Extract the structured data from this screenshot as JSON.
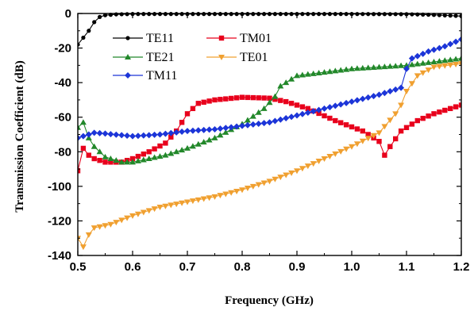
{
  "chart_data": {
    "type": "line",
    "title": "",
    "xlabel": "Frequency (GHz)",
    "ylabel": "Transmission Coefficient (dB)",
    "xlim": [
      0.5,
      1.2
    ],
    "ylim": [
      -140,
      0
    ],
    "xticks": [
      0.5,
      0.6,
      0.7,
      0.8,
      0.9,
      1.0,
      1.1,
      1.2
    ],
    "xtick_labels": [
      "0.5",
      "0.6",
      "0.7",
      "0.8",
      "0.9",
      "1.0",
      "1.1",
      "1.2"
    ],
    "yticks": [
      0,
      -20,
      -40,
      -60,
      -80,
      -100,
      -120,
      -140
    ],
    "ytick_labels": [
      "0",
      "-20",
      "-40",
      "-60",
      "-80",
      "-100",
      "-120",
      "-140"
    ],
    "grid": false,
    "legend_position": "top-left",
    "series": [
      {
        "name": "TE11",
        "color": "#000000",
        "marker": "circle",
        "points": [
          [
            0.5,
            -18
          ],
          [
            0.51,
            -14
          ],
          [
            0.52,
            -10
          ],
          [
            0.53,
            -5
          ],
          [
            0.54,
            -2
          ],
          [
            0.55,
            -1
          ],
          [
            0.57,
            -0.5
          ],
          [
            0.6,
            -0.3
          ],
          [
            0.7,
            -0.3
          ],
          [
            0.8,
            -0.3
          ],
          [
            0.9,
            -0.3
          ],
          [
            1.0,
            -0.3
          ],
          [
            1.1,
            -0.4
          ],
          [
            1.15,
            -0.8
          ],
          [
            1.2,
            -1.5
          ]
        ]
      },
      {
        "name": "TM01",
        "color": "#e8001c",
        "marker": "square",
        "points": [
          [
            0.5,
            -91
          ],
          [
            0.51,
            -78
          ],
          [
            0.52,
            -82
          ],
          [
            0.53,
            -84
          ],
          [
            0.55,
            -86
          ],
          [
            0.58,
            -86
          ],
          [
            0.6,
            -84
          ],
          [
            0.63,
            -80
          ],
          [
            0.66,
            -75
          ],
          [
            0.68,
            -68
          ],
          [
            0.7,
            -58
          ],
          [
            0.72,
            -52
          ],
          [
            0.75,
            -50
          ],
          [
            0.8,
            -48.5
          ],
          [
            0.85,
            -49
          ],
          [
            0.88,
            -51
          ],
          [
            0.92,
            -55
          ],
          [
            0.97,
            -62
          ],
          [
            1.02,
            -68
          ],
          [
            1.05,
            -74
          ],
          [
            1.06,
            -82
          ],
          [
            1.07,
            -77
          ],
          [
            1.09,
            -68
          ],
          [
            1.12,
            -62
          ],
          [
            1.15,
            -58
          ],
          [
            1.2,
            -53
          ]
        ]
      },
      {
        "name": "TE21",
        "color": "#22882a",
        "marker": "triangle-up",
        "points": [
          [
            0.5,
            -66
          ],
          [
            0.51,
            -63
          ],
          [
            0.52,
            -72
          ],
          [
            0.53,
            -77
          ],
          [
            0.55,
            -83
          ],
          [
            0.58,
            -86
          ],
          [
            0.6,
            -86
          ],
          [
            0.63,
            -84
          ],
          [
            0.66,
            -82
          ],
          [
            0.7,
            -78
          ],
          [
            0.75,
            -72
          ],
          [
            0.8,
            -64
          ],
          [
            0.84,
            -55
          ],
          [
            0.86,
            -48
          ],
          [
            0.87,
            -42
          ],
          [
            0.88,
            -40
          ],
          [
            0.9,
            -36
          ],
          [
            0.95,
            -34
          ],
          [
            1.0,
            -32
          ],
          [
            1.1,
            -30
          ],
          [
            1.15,
            -28
          ],
          [
            1.2,
            -26
          ]
        ]
      },
      {
        "name": "TE01",
        "color": "#f0a030",
        "marker": "triangle-down",
        "points": [
          [
            0.5,
            -130
          ],
          [
            0.51,
            -135
          ],
          [
            0.52,
            -128
          ],
          [
            0.53,
            -124
          ],
          [
            0.56,
            -122
          ],
          [
            0.6,
            -117
          ],
          [
            0.65,
            -112
          ],
          [
            0.7,
            -109
          ],
          [
            0.75,
            -106
          ],
          [
            0.8,
            -102
          ],
          [
            0.85,
            -97
          ],
          [
            0.9,
            -91
          ],
          [
            0.95,
            -84
          ],
          [
            1.0,
            -77
          ],
          [
            1.05,
            -69
          ],
          [
            1.08,
            -58
          ],
          [
            1.09,
            -53
          ],
          [
            1.1,
            -45
          ],
          [
            1.12,
            -36
          ],
          [
            1.15,
            -31
          ],
          [
            1.2,
            -29
          ]
        ]
      },
      {
        "name": "TM11",
        "color": "#1c35d8",
        "marker": "diamond",
        "points": [
          [
            0.5,
            -72
          ],
          [
            0.51,
            -71
          ],
          [
            0.53,
            -69
          ],
          [
            0.55,
            -69.5
          ],
          [
            0.6,
            -71
          ],
          [
            0.65,
            -70
          ],
          [
            0.7,
            -68
          ],
          [
            0.75,
            -67
          ],
          [
            0.8,
            -65
          ],
          [
            0.85,
            -63
          ],
          [
            0.9,
            -59
          ],
          [
            0.95,
            -55
          ],
          [
            1.0,
            -51
          ],
          [
            1.05,
            -47
          ],
          [
            1.09,
            -43
          ],
          [
            1.1,
            -32
          ],
          [
            1.11,
            -26
          ],
          [
            1.14,
            -22
          ],
          [
            1.17,
            -19
          ],
          [
            1.2,
            -15
          ]
        ]
      }
    ]
  }
}
